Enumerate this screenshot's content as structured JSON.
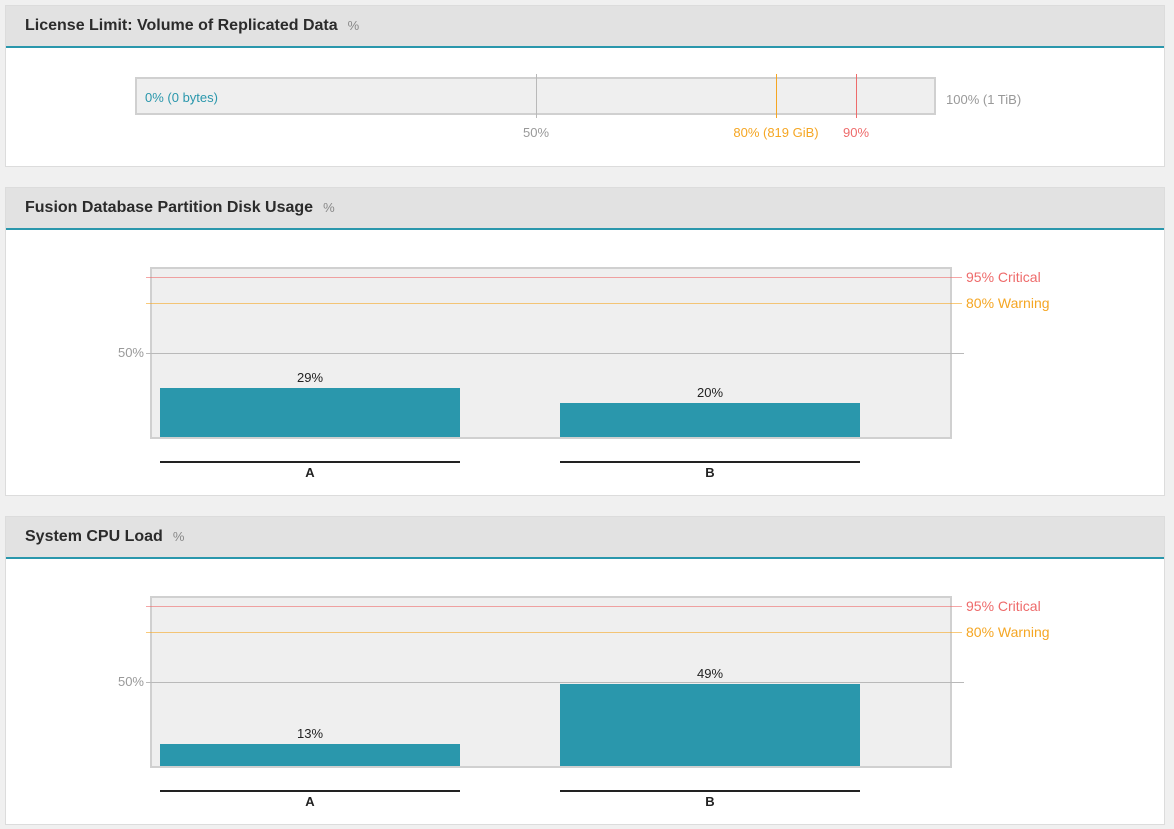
{
  "panels": {
    "license": {
      "title": "License Limit: Volume of Replicated Data",
      "unit": "%",
      "current_label": "0% (0 bytes)",
      "current_value": 0,
      "max_label": "100% (1 TiB)",
      "markers": [
        {
          "value": 50,
          "label": "50%",
          "color": "#b9b9b9"
        },
        {
          "value": 80,
          "label": "80% (819 GiB)",
          "color": "#f5a623"
        },
        {
          "value": 90,
          "label": "90%",
          "color": "#ee6b6b"
        }
      ]
    },
    "disk": {
      "title": "Fusion Database Partition Disk Usage",
      "unit": "%"
    },
    "cpu": {
      "title": "System CPU Load",
      "unit": "%"
    }
  },
  "colors": {
    "accent": "#2a97ac",
    "critical": "#ee6b6b",
    "warning": "#f5a623",
    "gridline": "#b9b9b9"
  },
  "chart_data": [
    {
      "type": "bar",
      "title": "Fusion Database Partition Disk Usage",
      "ylabel": "%",
      "categories": [
        "A",
        "B"
      ],
      "values": [
        29,
        20
      ],
      "value_labels": [
        "29%",
        "20%"
      ],
      "ylim": [
        0,
        100
      ],
      "yticks": [
        {
          "value": 50,
          "label": "50%"
        }
      ],
      "thresholds": [
        {
          "value": 95,
          "label": "95% Critical",
          "color": "#ee6b6b"
        },
        {
          "value": 80,
          "label": "80% Warning",
          "color": "#f5a623"
        }
      ],
      "grid": true
    },
    {
      "type": "bar",
      "title": "System CPU Load",
      "ylabel": "%",
      "categories": [
        "A",
        "B"
      ],
      "values": [
        13,
        49
      ],
      "value_labels": [
        "13%",
        "49%"
      ],
      "ylim": [
        0,
        100
      ],
      "yticks": [
        {
          "value": 50,
          "label": "50%"
        }
      ],
      "thresholds": [
        {
          "value": 95,
          "label": "95% Critical",
          "color": "#ee6b6b"
        },
        {
          "value": 80,
          "label": "80% Warning",
          "color": "#f5a623"
        }
      ],
      "grid": true
    }
  ]
}
